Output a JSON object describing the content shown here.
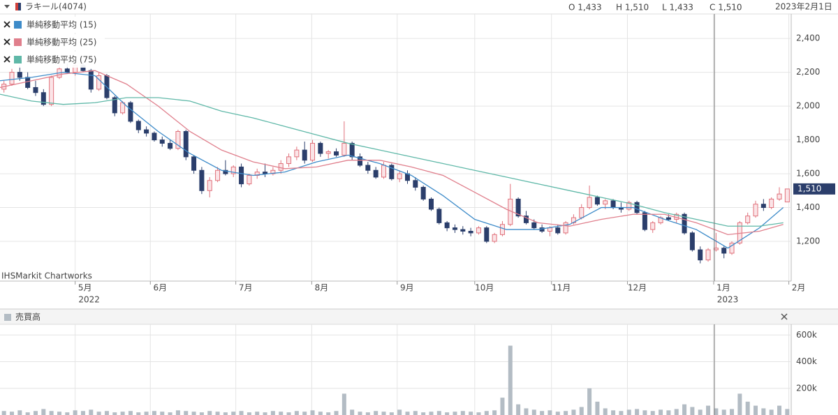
{
  "header": {
    "title": "ラキール(4074)",
    "ohlc": [
      "O 1,433",
      "H 1,510",
      "L 1,433",
      "C 1,510"
    ],
    "date": "2023年2月1日"
  },
  "chart_data": [
    {
      "type": "candlestick",
      "source": "IHSMarkit Chartworks",
      "up_color": "#e0707a",
      "down_color": "#2b3e6b",
      "xlim": [
        0,
        100
      ],
      "ylim": [
        965,
        2545
      ],
      "xticks": [
        {
          "value": 9.5,
          "label": "5月"
        },
        {
          "value": 19,
          "label": "6月"
        },
        {
          "value": 29.8,
          "label": "7月"
        },
        {
          "value": 39.4,
          "label": "8月"
        },
        {
          "value": 50.2,
          "label": "9月"
        },
        {
          "value": 60,
          "label": "10月"
        },
        {
          "value": 69.7,
          "label": "11月"
        },
        {
          "value": 79.3,
          "label": "12月"
        },
        {
          "value": 90.2,
          "label": "1月"
        },
        {
          "value": 99.7,
          "label": "2月"
        }
      ],
      "year_labels": [
        {
          "value": 9.5,
          "label": "2022"
        },
        {
          "value": 90.2,
          "label": "2023"
        }
      ],
      "yticks": [
        {
          "value": 1200,
          "label": "1,200"
        },
        {
          "value": 1400,
          "label": "1,400"
        },
        {
          "value": 1600,
          "label": "1,600"
        },
        {
          "value": 1800,
          "label": "1,800"
        },
        {
          "value": 2000,
          "label": "2,000"
        },
        {
          "value": 2200,
          "label": "2,200"
        },
        {
          "value": 2400,
          "label": "2,400"
        }
      ],
      "grid": true,
      "last_label": {
        "value": 1510,
        "label": "1,510"
      },
      "ohlc": [
        [
          2100,
          2150,
          2080,
          2130
        ],
        [
          2130,
          2220,
          2120,
          2200
        ],
        [
          2200,
          2240,
          2150,
          2170
        ],
        [
          2170,
          2200,
          2100,
          2110
        ],
        [
          2110,
          2150,
          2060,
          2080
        ],
        [
          2080,
          2100,
          2000,
          2010
        ],
        [
          2010,
          2180,
          2000,
          2170
        ],
        [
          2170,
          2240,
          2160,
          2220
        ],
        [
          2220,
          2250,
          2190,
          2200
        ],
        [
          2200,
          2260,
          2180,
          2240
        ],
        [
          2240,
          2260,
          2200,
          2210
        ],
        [
          2210,
          2220,
          2080,
          2100
        ],
        [
          2100,
          2200,
          2090,
          2180
        ],
        [
          2180,
          2190,
          2040,
          2050
        ],
        [
          2050,
          2060,
          1940,
          1960
        ],
        [
          1960,
          2030,
          1950,
          2020
        ],
        [
          2020,
          2030,
          1900,
          1910
        ],
        [
          1910,
          1920,
          1840,
          1860
        ],
        [
          1860,
          1880,
          1820,
          1840
        ],
        [
          1840,
          1850,
          1790,
          1800
        ],
        [
          1800,
          1820,
          1760,
          1780
        ],
        [
          1780,
          1800,
          1740,
          1750
        ],
        [
          1750,
          1860,
          1740,
          1850
        ],
        [
          1850,
          1860,
          1680,
          1700
        ],
        [
          1700,
          1710,
          1600,
          1620
        ],
        [
          1620,
          1640,
          1480,
          1500
        ],
        [
          1500,
          1580,
          1460,
          1560
        ],
        [
          1560,
          1640,
          1550,
          1620
        ],
        [
          1620,
          1680,
          1590,
          1600
        ],
        [
          1600,
          1650,
          1580,
          1640
        ],
        [
          1640,
          1660,
          1520,
          1540
        ],
        [
          1540,
          1600,
          1530,
          1590
        ],
        [
          1590,
          1630,
          1570,
          1610
        ],
        [
          1610,
          1660,
          1580,
          1600
        ],
        [
          1600,
          1640,
          1590,
          1620
        ],
        [
          1620,
          1680,
          1600,
          1660
        ],
        [
          1660,
          1720,
          1640,
          1700
        ],
        [
          1700,
          1760,
          1680,
          1740
        ],
        [
          1740,
          1790,
          1660,
          1680
        ],
        [
          1680,
          1800,
          1670,
          1780
        ],
        [
          1780,
          1790,
          1700,
          1720
        ],
        [
          1720,
          1740,
          1690,
          1730
        ],
        [
          1730,
          1750,
          1700,
          1710
        ],
        [
          1710,
          1910,
          1700,
          1780
        ],
        [
          1780,
          1790,
          1680,
          1700
        ],
        [
          1700,
          1720,
          1640,
          1650
        ],
        [
          1650,
          1670,
          1600,
          1620
        ],
        [
          1620,
          1640,
          1570,
          1580
        ],
        [
          1580,
          1670,
          1570,
          1650
        ],
        [
          1650,
          1660,
          1560,
          1570
        ],
        [
          1570,
          1620,
          1550,
          1600
        ],
        [
          1600,
          1620,
          1540,
          1560
        ],
        [
          1560,
          1580,
          1500,
          1520
        ],
        [
          1520,
          1530,
          1440,
          1450
        ],
        [
          1450,
          1460,
          1380,
          1390
        ],
        [
          1390,
          1400,
          1300,
          1310
        ],
        [
          1310,
          1320,
          1260,
          1280
        ],
        [
          1280,
          1300,
          1250,
          1270
        ],
        [
          1270,
          1290,
          1240,
          1260
        ],
        [
          1260,
          1280,
          1230,
          1250
        ],
        [
          1250,
          1290,
          1240,
          1280
        ],
        [
          1280,
          1290,
          1190,
          1200
        ],
        [
          1200,
          1250,
          1190,
          1240
        ],
        [
          1240,
          1320,
          1230,
          1300
        ],
        [
          1300,
          1540,
          1290,
          1450
        ],
        [
          1450,
          1460,
          1340,
          1350
        ],
        [
          1350,
          1380,
          1300,
          1310
        ],
        [
          1310,
          1330,
          1270,
          1280
        ],
        [
          1280,
          1300,
          1250,
          1260
        ],
        [
          1260,
          1290,
          1230,
          1280
        ],
        [
          1280,
          1300,
          1240,
          1250
        ],
        [
          1250,
          1320,
          1240,
          1310
        ],
        [
          1310,
          1360,
          1300,
          1340
        ],
        [
          1340,
          1420,
          1330,
          1400
        ],
        [
          1400,
          1530,
          1390,
          1460
        ],
        [
          1460,
          1470,
          1410,
          1420
        ],
        [
          1420,
          1450,
          1390,
          1440
        ],
        [
          1440,
          1450,
          1390,
          1400
        ],
        [
          1400,
          1430,
          1370,
          1390
        ],
        [
          1390,
          1440,
          1380,
          1430
        ],
        [
          1430,
          1440,
          1360,
          1370
        ],
        [
          1370,
          1380,
          1260,
          1270
        ],
        [
          1270,
          1320,
          1250,
          1310
        ],
        [
          1310,
          1350,
          1300,
          1340
        ],
        [
          1340,
          1360,
          1320,
          1330
        ],
        [
          1330,
          1370,
          1310,
          1360
        ],
        [
          1360,
          1370,
          1240,
          1250
        ],
        [
          1250,
          1260,
          1140,
          1150
        ],
        [
          1150,
          1170,
          1070,
          1090
        ],
        [
          1090,
          1160,
          1080,
          1150
        ],
        [
          1150,
          1250,
          1140,
          1160
        ],
        [
          1160,
          1170,
          1100,
          1130
        ],
        [
          1130,
          1200,
          1120,
          1190
        ],
        [
          1190,
          1320,
          1180,
          1310
        ],
        [
          1310,
          1370,
          1300,
          1350
        ],
        [
          1350,
          1440,
          1340,
          1420
        ],
        [
          1420,
          1450,
          1380,
          1400
        ],
        [
          1400,
          1460,
          1390,
          1450
        ],
        [
          1450,
          1520,
          1440,
          1480
        ],
        [
          1433,
          1510,
          1433,
          1510
        ]
      ],
      "ma_x": [
        0,
        4,
        8,
        12,
        16,
        20,
        24,
        28,
        32,
        36,
        40,
        44,
        48,
        52,
        56,
        60,
        64,
        68,
        72,
        76,
        80,
        84,
        88,
        92,
        96,
        99
      ],
      "series": [
        {
          "name": "単純移動平均 (15)",
          "color": "#3d8bc9",
          "values": [
            2150,
            2170,
            2200,
            2180,
            2000,
            1850,
            1720,
            1620,
            1590,
            1610,
            1670,
            1710,
            1660,
            1590,
            1470,
            1330,
            1270,
            1270,
            1300,
            1400,
            1400,
            1330,
            1270,
            1160,
            1280,
            1400
          ]
        },
        {
          "name": "単純移動平均 (25)",
          "color": "#e07f8c",
          "values": [
            2110,
            2150,
            2190,
            2210,
            2130,
            2000,
            1850,
            1740,
            1670,
            1630,
            1640,
            1680,
            1680,
            1640,
            1590,
            1490,
            1390,
            1310,
            1290,
            1330,
            1360,
            1360,
            1310,
            1240,
            1260,
            1300
          ]
        },
        {
          "name": "単純移動平均 (75)",
          "color": "#5fb8a8",
          "values": [
            2070,
            2030,
            2010,
            2020,
            2050,
            2050,
            2030,
            1970,
            1930,
            1880,
            1830,
            1780,
            1740,
            1700,
            1660,
            1620,
            1580,
            1540,
            1500,
            1460,
            1420,
            1370,
            1330,
            1290,
            1290,
            1310
          ]
        }
      ]
    },
    {
      "type": "bar",
      "title": "売買高",
      "color": "#b3bcc4",
      "ylim": [
        0,
        680000
      ],
      "yticks": [
        {
          "value": 200000,
          "label": "200k"
        },
        {
          "value": 400000,
          "label": "400k"
        },
        {
          "value": 600000,
          "label": "600k"
        }
      ],
      "values": [
        30000,
        25000,
        35000,
        20000,
        30000,
        45000,
        30000,
        25000,
        20000,
        35000,
        30000,
        40000,
        25000,
        30000,
        20000,
        25000,
        30000,
        20000,
        25000,
        30000,
        25000,
        20000,
        35000,
        30000,
        25000,
        20000,
        30000,
        25000,
        20000,
        25000,
        30000,
        20000,
        25000,
        20000,
        30000,
        25000,
        20000,
        30000,
        25000,
        35000,
        25000,
        20000,
        30000,
        160000,
        40000,
        25000,
        20000,
        30000,
        25000,
        20000,
        40000,
        25000,
        30000,
        20000,
        25000,
        30000,
        20000,
        25000,
        30000,
        25000,
        20000,
        30000,
        35000,
        130000,
        520000,
        80000,
        50000,
        40000,
        30000,
        35000,
        25000,
        30000,
        40000,
        60000,
        200000,
        100000,
        50000,
        35000,
        30000,
        40000,
        45000,
        35000,
        30000,
        40000,
        35000,
        45000,
        80000,
        60000,
        40000,
        70000,
        50000,
        40000,
        45000,
        160000,
        100000,
        70000,
        50000,
        40000,
        70000,
        45000
      ]
    }
  ]
}
